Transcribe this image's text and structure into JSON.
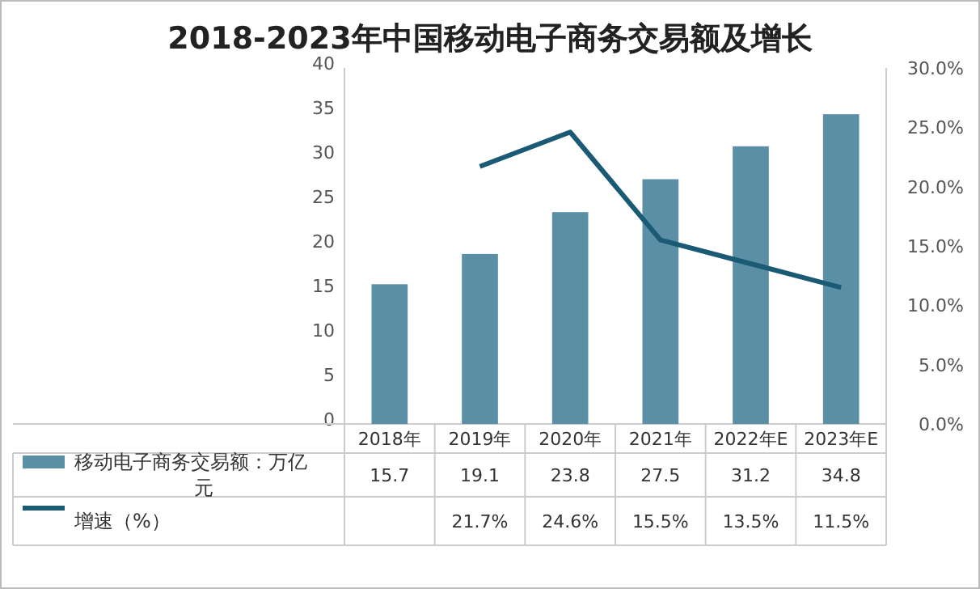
{
  "chart_data": {
    "type": "bar",
    "title": "2018-2023年中国移动电子商务交易额及增长",
    "categories": [
      "2018年",
      "2019年",
      "2020年",
      "2021年",
      "2022年E",
      "2023年E"
    ],
    "ylim": [
      0,
      40
    ],
    "yticks": [
      0,
      5,
      10,
      15,
      20,
      25,
      30,
      35,
      40
    ],
    "y2lim": [
      0,
      30
    ],
    "y2ticks": [
      {
        "value": 0,
        "label": "0.0%"
      },
      {
        "value": 5,
        "label": "5.0%"
      },
      {
        "value": 10,
        "label": "10.0%"
      },
      {
        "value": 15,
        "label": "15.0%"
      },
      {
        "value": 20,
        "label": "20.0%"
      },
      {
        "value": 25,
        "label": "25.0%"
      },
      {
        "value": 30,
        "label": "30.0%"
      }
    ],
    "legend": "bottom",
    "grid": false,
    "series": [
      {
        "name": "移动电子商务交易额：万亿元",
        "color": "#5b8fa5",
        "values": [
          15.7,
          19.1,
          23.8,
          27.5,
          31.2,
          34.8
        ],
        "value_labels": [
          "15.7",
          "19.1",
          "23.8",
          "27.5",
          "31.2",
          "34.8"
        ]
      },
      {
        "name": "增速（%）",
        "type": "line",
        "axis": "y2",
        "color": "#1b5a74",
        "values": [
          null,
          21.7,
          24.6,
          15.5,
          13.5,
          11.5
        ],
        "value_labels": [
          null,
          "21.7%",
          "24.6%",
          "15.5%",
          "13.5%",
          "11.5%"
        ]
      }
    ]
  }
}
